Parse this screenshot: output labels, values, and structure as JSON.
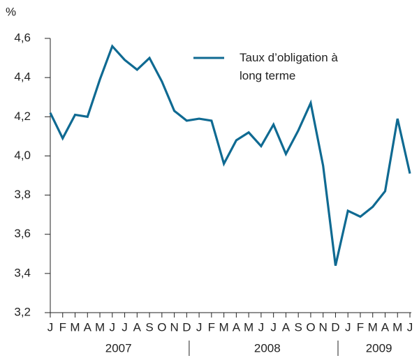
{
  "chart_data": {
    "type": "line",
    "y_unit_label": "%",
    "categories": [
      "J",
      "F",
      "M",
      "A",
      "M",
      "J",
      "J",
      "A",
      "S",
      "O",
      "N",
      "D",
      "J",
      "F",
      "M",
      "A",
      "M",
      "J",
      "J",
      "A",
      "S",
      "O",
      "N",
      "D",
      "J",
      "F",
      "M",
      "A",
      "M",
      "J"
    ],
    "year_groups": [
      {
        "label": "2007",
        "months": 12
      },
      {
        "label": "2008",
        "months": 12
      },
      {
        "label": "2009",
        "months": 6
      }
    ],
    "series": [
      {
        "name": "Taux d’obligation à long terme",
        "color": "#0f6a92",
        "values": [
          4.22,
          4.09,
          4.21,
          4.2,
          4.39,
          4.56,
          4.49,
          4.44,
          4.5,
          4.38,
          4.23,
          4.18,
          4.19,
          4.18,
          3.96,
          4.08,
          4.12,
          4.05,
          4.16,
          4.01,
          4.13,
          4.27,
          3.95,
          3.44,
          3.72,
          3.69,
          3.74,
          3.82,
          4.19,
          3.91
        ]
      }
    ],
    "ylim": [
      3.2,
      4.6
    ],
    "yticks": [
      {
        "value": 3.2,
        "label": "3,2"
      },
      {
        "value": 3.4,
        "label": "3,4"
      },
      {
        "value": 3.6,
        "label": "3,6"
      },
      {
        "value": 3.8,
        "label": "3,8"
      },
      {
        "value": 4.0,
        "label": "4,0"
      },
      {
        "value": 4.2,
        "label": "4,2"
      },
      {
        "value": 4.4,
        "label": "4,4"
      },
      {
        "value": 4.6,
        "label": "4,6"
      }
    ],
    "grid": false,
    "legend": "top-right"
  }
}
